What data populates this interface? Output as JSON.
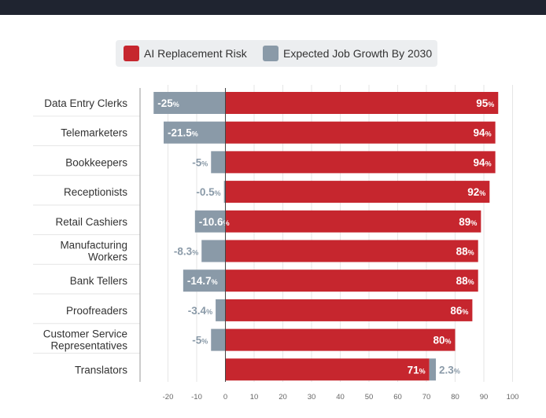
{
  "colors": {
    "risk": "#c6262e",
    "growth": "#8a9aa8",
    "topbar": "#1f2430",
    "legend_bg": "#eceef0",
    "text": "#333333",
    "axis": "#999999",
    "grid": "#e6e6e6"
  },
  "legend": {
    "risk_label": "AI Replacement Risk",
    "growth_label": "Expected Job Growth By 2030"
  },
  "chart_data": {
    "type": "bar",
    "orientation": "horizontal",
    "categories": [
      [
        "Data Entry Clerks"
      ],
      [
        "Telemarketers"
      ],
      [
        "Bookkeepers"
      ],
      [
        "Receptionists"
      ],
      [
        "Retail Cashiers"
      ],
      [
        "Manufacturing",
        "Workers"
      ],
      [
        "Bank Tellers"
      ],
      [
        "Proofreaders"
      ],
      [
        "Customer Service",
        "Representatives"
      ],
      [
        "Translators"
      ]
    ],
    "series": [
      {
        "name": "AI Replacement Risk",
        "values": [
          95,
          94,
          94,
          92,
          89,
          88,
          88,
          86,
          80,
          71
        ],
        "labels": [
          "95",
          "94",
          "94",
          "92",
          "89",
          "88",
          "88",
          "86",
          "80",
          "71"
        ]
      },
      {
        "name": "Expected Job Growth By 2030",
        "values": [
          -25,
          -21.5,
          -5,
          -0.5,
          -10.6,
          -8.3,
          -14.7,
          -3.4,
          -5,
          2.3
        ],
        "labels": [
          "-25",
          "-21.5",
          "-5",
          "-0.5",
          "-10.6",
          "-8.3",
          "-14.7",
          "-3.4",
          "-5",
          "2.3"
        ]
      }
    ],
    "unit": "%",
    "xlim": [
      -25,
      100
    ],
    "xticks": [
      -20,
      -10,
      0,
      10,
      20,
      30,
      40,
      50,
      60,
      70,
      80,
      90,
      100
    ],
    "grid": true,
    "legend_position": "top"
  }
}
